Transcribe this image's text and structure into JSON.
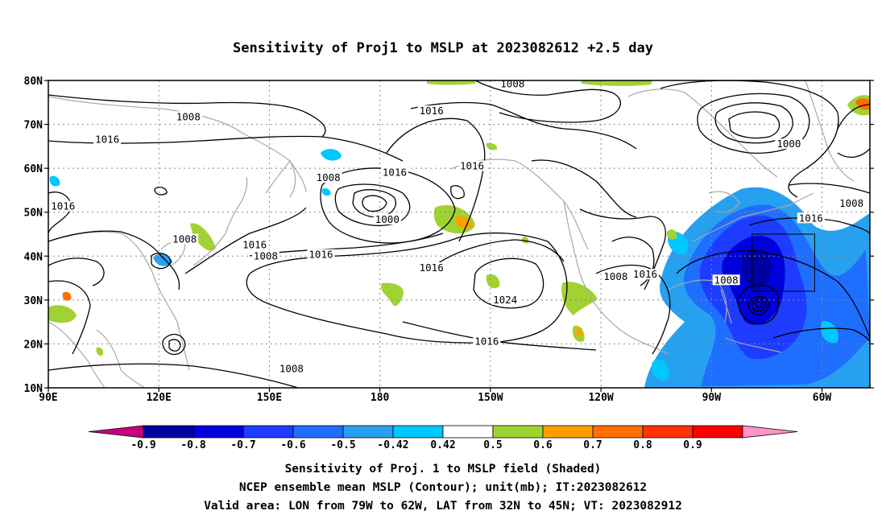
{
  "title": "Sensitivity of Proj1 to MSLP at 2023082612 +2.5 day",
  "map": {
    "lon_range": [
      90,
      313
    ],
    "lat_range": [
      10,
      80
    ],
    "lat_ticks": [
      {
        "value": 80,
        "label": "80N"
      },
      {
        "value": 70,
        "label": "70N"
      },
      {
        "value": 60,
        "label": "60N"
      },
      {
        "value": 50,
        "label": "50N"
      },
      {
        "value": 40,
        "label": "40N"
      },
      {
        "value": 30,
        "label": "30N"
      },
      {
        "value": 20,
        "label": "20N"
      },
      {
        "value": 10,
        "label": "10N"
      }
    ],
    "lon_ticks": [
      {
        "value": 90,
        "label": "90E"
      },
      {
        "value": 120,
        "label": "120E"
      },
      {
        "value": 150,
        "label": "150E"
      },
      {
        "value": 180,
        "label": "180"
      },
      {
        "value": 210,
        "label": "150W"
      },
      {
        "value": 240,
        "label": "120W"
      },
      {
        "value": 270,
        "label": "90W"
      },
      {
        "value": 300,
        "label": "60W"
      }
    ],
    "grid": "dotted",
    "valid_area_box": {
      "lon": [
        281,
        298
      ],
      "lat": [
        32,
        45
      ]
    },
    "contour_labels": [
      {
        "lon": 128,
        "lat": 71.7,
        "text": "1008"
      },
      {
        "lon": 106,
        "lat": 66.5,
        "text": "1016"
      },
      {
        "lon": 94,
        "lat": 51.3,
        "text": "1016"
      },
      {
        "lon": 127,
        "lat": 43.8,
        "text": "1008"
      },
      {
        "lon": 146,
        "lat": 42.5,
        "text": "1016"
      },
      {
        "lon": 149,
        "lat": 40,
        "text": "1008"
      },
      {
        "lon": 164,
        "lat": 40.3,
        "text": "1016"
      },
      {
        "lon": 166,
        "lat": 57.8,
        "text": "1008"
      },
      {
        "lon": 182,
        "lat": 48.3,
        "text": "1000"
      },
      {
        "lon": 184,
        "lat": 59,
        "text": "1016"
      },
      {
        "lon": 194,
        "lat": 73,
        "text": "1016"
      },
      {
        "lon": 216,
        "lat": 79.2,
        "text": "1008"
      },
      {
        "lon": 205,
        "lat": 60.5,
        "text": "1016"
      },
      {
        "lon": 194,
        "lat": 37.3,
        "text": "1016"
      },
      {
        "lon": 214,
        "lat": 30,
        "text": "1024"
      },
      {
        "lon": 209,
        "lat": 20.5,
        "text": "1016"
      },
      {
        "lon": 156,
        "lat": 14.3,
        "text": "1008"
      },
      {
        "lon": 244,
        "lat": 35.3,
        "text": "1008"
      },
      {
        "lon": 252,
        "lat": 35.8,
        "text": "1016"
      },
      {
        "lon": 274,
        "lat": 34.5,
        "text": "1008"
      },
      {
        "lon": 291,
        "lat": 65.5,
        "text": "1000"
      },
      {
        "lon": 297,
        "lat": 48.6,
        "text": "1016"
      },
      {
        "lon": 308,
        "lat": 52,
        "text": "1008"
      }
    ],
    "shading_colors": {
      "-0.9": "#0000a0",
      "-0.8": "#0000dc",
      "-0.7": "#1e3cff",
      "-0.6": "#1e6eff",
      "-0.5": "#28a0f0",
      "-0.42": "#00c8ff",
      "0.42": "#ffffff",
      "0.5": "#a0d232",
      "0.6": "#ffa000",
      "0.7": "#ff6e00",
      "0.8": "#ff3200",
      "0.9": "#ff0000"
    }
  },
  "colorbar": {
    "left_arrow_color": "#c8007f",
    "right_arrow_color": "#ff96c8",
    "bins": [
      {
        "color": "#0000a0"
      },
      {
        "color": "#0000dc"
      },
      {
        "color": "#1e3cff"
      },
      {
        "color": "#1e6eff"
      },
      {
        "color": "#28a0f0"
      },
      {
        "color": "#00c8ff"
      },
      {
        "color": "#ffffff"
      },
      {
        "color": "#a0d232"
      },
      {
        "color": "#ffa000"
      },
      {
        "color": "#ff6e00"
      },
      {
        "color": "#ff3200"
      },
      {
        "color": "#ff0000"
      }
    ],
    "labels": [
      "-0.9",
      "-0.8",
      "-0.7",
      "-0.6",
      "-0.5",
      "-0.42",
      "0.42",
      "0.5",
      "0.6",
      "0.7",
      "0.8",
      "0.9"
    ]
  },
  "captions": {
    "line1": "Sensitivity of Proj. 1 to MSLP field (Shaded)",
    "line2": "NCEP ensemble mean MSLP (Contour); unit(mb); IT:2023082612",
    "line3": "Valid area: LON from 79W to 62W, LAT from 32N to 45N; VT: 2023082912"
  }
}
